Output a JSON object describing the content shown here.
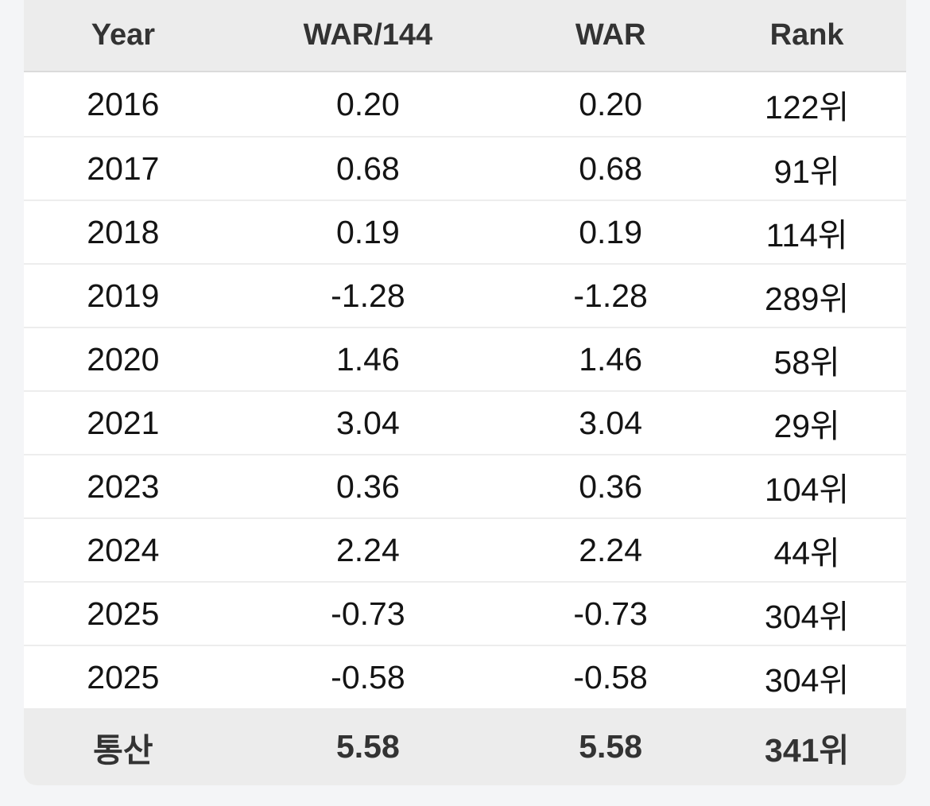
{
  "colors": {
    "page_background": "#f4f5f7",
    "band_background": "#ececec",
    "row_background": "#ffffff",
    "row_separator": "#ededed",
    "header_border": "#dbdbdb",
    "header_text": "#333333",
    "data_text": "#141414"
  },
  "table": {
    "columns": [
      {
        "label": "Year"
      },
      {
        "label": "WAR/144"
      },
      {
        "label": "WAR"
      },
      {
        "label": "Rank"
      }
    ],
    "rows": [
      {
        "year": "2016",
        "war144": "0.20",
        "war": "0.20",
        "rank": "122위"
      },
      {
        "year": "2017",
        "war144": "0.68",
        "war": "0.68",
        "rank": "91위"
      },
      {
        "year": "2018",
        "war144": "0.19",
        "war": "0.19",
        "rank": "114위"
      },
      {
        "year": "2019",
        "war144": "-1.28",
        "war": "-1.28",
        "rank": "289위"
      },
      {
        "year": "2020",
        "war144": "1.46",
        "war": "1.46",
        "rank": "58위"
      },
      {
        "year": "2021",
        "war144": "3.04",
        "war": "3.04",
        "rank": "29위"
      },
      {
        "year": "2023",
        "war144": "0.36",
        "war": "0.36",
        "rank": "104위"
      },
      {
        "year": "2024",
        "war144": "2.24",
        "war": "2.24",
        "rank": "44위"
      },
      {
        "year": "2025",
        "war144": "-0.73",
        "war": "-0.73",
        "rank": "304위"
      },
      {
        "year": "2025",
        "war144": "-0.58",
        "war": "-0.58",
        "rank": "304위"
      }
    ],
    "footer": {
      "year": "통산",
      "war144": "5.58",
      "war": "5.58",
      "rank": "341위"
    }
  }
}
